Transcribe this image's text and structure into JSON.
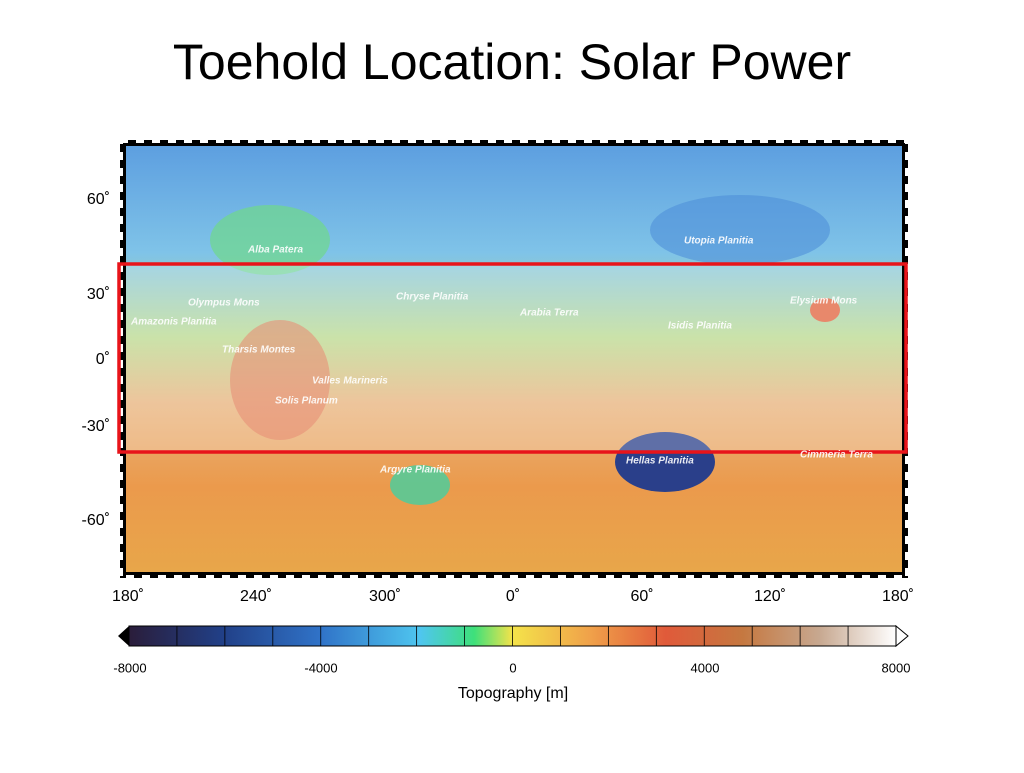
{
  "title": "Toehold Location: Solar Power",
  "map": {
    "lat_labels": [
      "60˚",
      "30˚",
      "0˚",
      "-30˚",
      "-60˚"
    ],
    "lon_labels": [
      "180˚",
      "240˚",
      "300˚",
      "0˚",
      "60˚",
      "120˚",
      "180˚"
    ],
    "places": [
      "Alba Patera",
      "Olympus Mons",
      "Amazonis Planitia",
      "Tharsis Montes",
      "Valles Marineris",
      "Solis Planum",
      "Chryse Planitia",
      "Arabia Terra",
      "Utopia Planitia",
      "Isidis Planitia",
      "Elysium Mons",
      "Hellas Planitia",
      "Argyre Planitia",
      "Cimmeria Terra"
    ]
  },
  "colorbar": {
    "tick_labels": [
      "-8000",
      "-4000",
      "0",
      "4000",
      "8000"
    ],
    "label": "Topography [m]"
  }
}
